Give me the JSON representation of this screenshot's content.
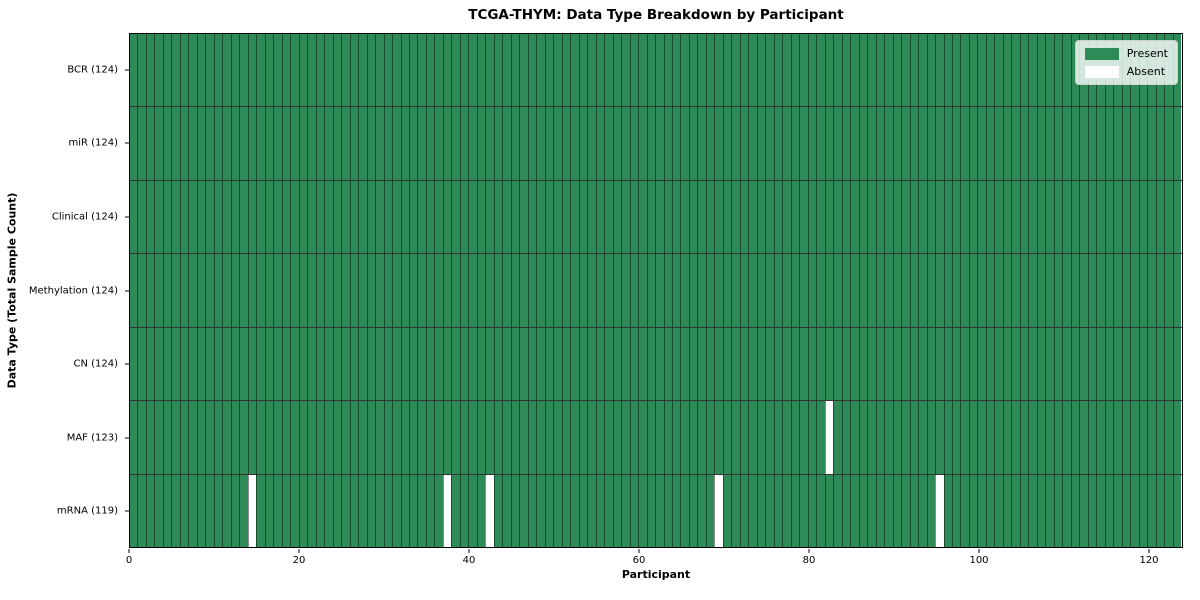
{
  "chart_data": {
    "type": "heatmap",
    "title": "TCGA-THYM: Data Type Breakdown by Participant",
    "xlabel": "Participant",
    "ylabel": "Data Type (Total Sample Count)",
    "n_participants": 124,
    "x_ticks": [
      0,
      20,
      40,
      60,
      80,
      100,
      120
    ],
    "x_range": [
      0,
      124
    ],
    "grid": "cell-borders",
    "legend_position": "upper right",
    "rows": [
      {
        "label": "BCR (124)",
        "data_type": "BCR",
        "present_count": 124,
        "absent_participants": []
      },
      {
        "label": "miR (124)",
        "data_type": "miR",
        "present_count": 124,
        "absent_participants": []
      },
      {
        "label": "Clinical (124)",
        "data_type": "Clinical",
        "present_count": 124,
        "absent_participants": []
      },
      {
        "label": "Methylation (124)",
        "data_type": "Methylation",
        "present_count": 124,
        "absent_participants": []
      },
      {
        "label": "CN (124)",
        "data_type": "CN",
        "present_count": 124,
        "absent_participants": []
      },
      {
        "label": "MAF (123)",
        "data_type": "MAF",
        "present_count": 123,
        "absent_participants": [
          82
        ]
      },
      {
        "label": "mRNA (119)",
        "data_type": "mRNA",
        "present_count": 119,
        "absent_participants": [
          14,
          37,
          42,
          69,
          95
        ]
      }
    ],
    "legend": [
      {
        "label": "Present",
        "color": "#2e8b57"
      },
      {
        "label": "Absent",
        "color": "#ffffff"
      }
    ],
    "colors": {
      "present": "#2e8b57",
      "absent": "#ffffff",
      "cell_border": "rgba(0,0,0,0.45)",
      "row_separator": "rgba(0,0,0,0.8)",
      "plot_border": "#000000",
      "text": "#000000"
    }
  }
}
